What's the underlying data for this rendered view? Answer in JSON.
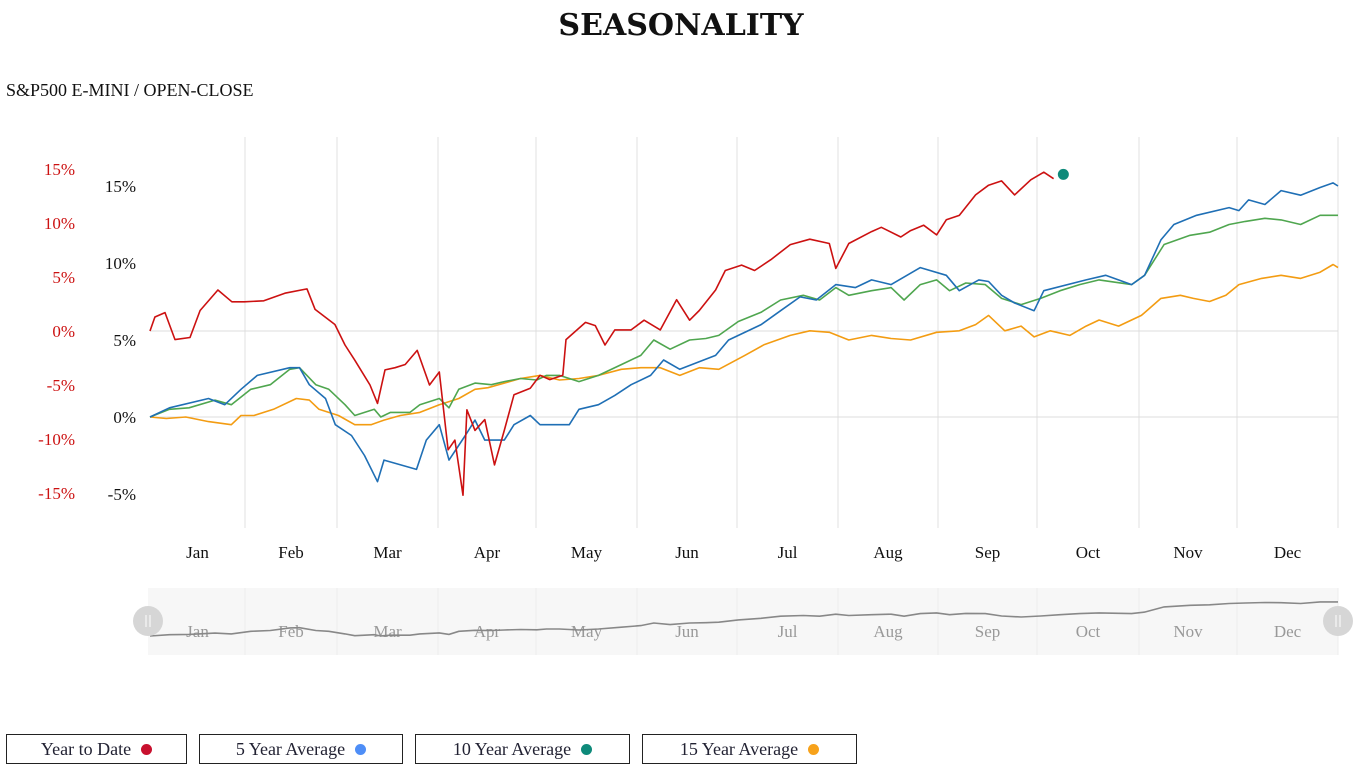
{
  "title": "SEASONALITY",
  "subtitle": "S&P500 E-MINI / OPEN-CLOSE",
  "chart_data": {
    "type": "line",
    "title": "SEASONALITY",
    "subtitle": "S&P500 E-MINI / OPEN-CLOSE",
    "x_unit": "day of year",
    "months": [
      "Jan",
      "Feb",
      "Mar",
      "Apr",
      "May",
      "Jun",
      "Jul",
      "Aug",
      "Sep",
      "Oct",
      "Nov",
      "Dec"
    ],
    "y_axes": [
      {
        "id": "ytd",
        "color": "#cc1111",
        "ticks": [
          "15%",
          "10%",
          "5%",
          "0%",
          "-5%",
          "-10%",
          "-15%"
        ],
        "tick_values": [
          15,
          10,
          5,
          0,
          -5,
          -10,
          -15
        ],
        "range": [
          -18.1,
          15.6
        ]
      },
      {
        "id": "avg",
        "color": "#111111",
        "ticks": [
          "15%",
          "10%",
          "5%",
          "0%",
          "-5%"
        ],
        "tick_values": [
          15,
          10,
          5,
          0,
          -5
        ],
        "range": [
          -7.3,
          18.1
        ]
      }
    ],
    "grid": true,
    "series": [
      {
        "name": "Year to Date",
        "axis": "ytd",
        "color": "#cc1111",
        "legend_dot": "#c8102e",
        "points": [
          [
            0,
            0
          ],
          [
            1.5,
            1.3
          ],
          [
            4.6,
            1.7
          ],
          [
            7.7,
            -0.8
          ],
          [
            12.3,
            -0.6
          ],
          [
            15.4,
            1.9
          ],
          [
            20.9,
            3.8
          ],
          [
            25.2,
            2.7
          ],
          [
            29,
            2.7
          ],
          [
            35,
            2.8
          ],
          [
            41.5,
            3.5
          ],
          [
            48.3,
            3.9
          ],
          [
            50.8,
            2.0
          ],
          [
            56.9,
            0.6
          ],
          [
            60,
            -1.3
          ],
          [
            63,
            -2.7
          ],
          [
            67.7,
            -5
          ],
          [
            70,
            -6.7
          ],
          [
            72.3,
            -3.6
          ],
          [
            75.4,
            -3.4
          ],
          [
            78.5,
            -3.1
          ],
          [
            82.2,
            -1.8
          ],
          [
            86,
            -5
          ],
          [
            89,
            -3.8
          ],
          [
            91.7,
            -11
          ],
          [
            93.8,
            -10.1
          ],
          [
            96.3,
            -15.2
          ],
          [
            97.5,
            -7.3
          ],
          [
            100,
            -9.2
          ],
          [
            103,
            -8.2
          ],
          [
            106,
            -12.4
          ],
          [
            109,
            -9.2
          ],
          [
            112,
            -5.9
          ],
          [
            117,
            -5.3
          ],
          [
            120,
            -4.1
          ],
          [
            123,
            -4.5
          ],
          [
            127,
            -4.1
          ],
          [
            128,
            -0.8
          ],
          [
            134,
            0.8
          ],
          [
            137,
            0.5
          ],
          [
            140,
            -1.3
          ],
          [
            143,
            0.1
          ],
          [
            148,
            0.1
          ],
          [
            152,
            1
          ],
          [
            157,
            0.1
          ],
          [
            162,
            2.9
          ],
          [
            166,
            1
          ],
          [
            169,
            1.9
          ],
          [
            174,
            3.8
          ],
          [
            177,
            5.6
          ],
          [
            182,
            6.1
          ],
          [
            186,
            5.6
          ],
          [
            191,
            6.6
          ],
          [
            197,
            8
          ],
          [
            203,
            8.5
          ],
          [
            209,
            8.1
          ],
          [
            211,
            5.8
          ],
          [
            215,
            8.1
          ],
          [
            222,
            9.2
          ],
          [
            225,
            9.6
          ],
          [
            231,
            8.7
          ],
          [
            234,
            9.3
          ],
          [
            238,
            9.8
          ],
          [
            242,
            8.9
          ],
          [
            245,
            10.3
          ],
          [
            249,
            10.7
          ],
          [
            254,
            12.6
          ],
          [
            258,
            13.5
          ],
          [
            262,
            13.9
          ],
          [
            266,
            12.6
          ],
          [
            271,
            14
          ],
          [
            275,
            14.7
          ],
          [
            278,
            14.1
          ]
        ],
        "current_marker": {
          "day": 281,
          "value": 14.5,
          "color": "#0e8a7a"
        }
      },
      {
        "name": "5 Year Average",
        "axis": "avg",
        "color": "#1f6fb5",
        "legend_dot": "#4e8ef7",
        "points": [
          [
            0,
            0
          ],
          [
            6,
            0.6
          ],
          [
            18,
            1.2
          ],
          [
            23,
            0.8
          ],
          [
            28,
            1.8
          ],
          [
            33,
            2.7
          ],
          [
            43,
            3.2
          ],
          [
            46,
            3.2
          ],
          [
            49,
            2.1
          ],
          [
            54,
            1.2
          ],
          [
            57,
            -0.5
          ],
          [
            62,
            -1.2
          ],
          [
            66,
            -2.5
          ],
          [
            70,
            -4.2
          ],
          [
            72,
            -2.8
          ],
          [
            82,
            -3.4
          ],
          [
            85,
            -1.5
          ],
          [
            89,
            -0.5
          ],
          [
            92,
            -2.8
          ],
          [
            97,
            -1.2
          ],
          [
            100,
            -0.2
          ],
          [
            103,
            -1.5
          ],
          [
            109,
            -1.5
          ],
          [
            112,
            -0.5
          ],
          [
            117,
            0.1
          ],
          [
            120,
            -0.5
          ],
          [
            129,
            -0.5
          ],
          [
            132,
            0.5
          ],
          [
            138,
            0.8
          ],
          [
            143,
            1.4
          ],
          [
            148,
            2.1
          ],
          [
            154,
            2.7
          ],
          [
            158,
            3.7
          ],
          [
            163,
            3.1
          ],
          [
            174,
            4.0
          ],
          [
            178,
            5.0
          ],
          [
            188,
            6.0
          ],
          [
            194,
            6.9
          ],
          [
            200,
            7.8
          ],
          [
            205,
            7.6
          ],
          [
            211,
            8.6
          ],
          [
            217,
            8.4
          ],
          [
            222,
            8.9
          ],
          [
            228,
            8.6
          ],
          [
            237,
            9.7
          ],
          [
            245,
            9.2
          ],
          [
            249,
            8.2
          ],
          [
            255,
            8.9
          ],
          [
            258,
            8.8
          ],
          [
            262,
            7.9
          ],
          [
            266,
            7.4
          ],
          [
            272,
            6.9
          ],
          [
            275,
            8.2
          ],
          [
            288,
            8.9
          ],
          [
            294,
            9.2
          ],
          [
            302,
            8.6
          ],
          [
            306,
            9.2
          ],
          [
            311,
            11.5
          ],
          [
            315,
            12.5
          ],
          [
            322,
            13.1
          ],
          [
            332,
            13.6
          ],
          [
            335,
            13.4
          ],
          [
            338,
            14.1
          ],
          [
            343,
            13.8
          ],
          [
            348,
            14.7
          ],
          [
            354,
            14.4
          ],
          [
            360,
            14.9
          ],
          [
            364,
            15.2
          ],
          [
            365.5,
            15.0
          ]
        ]
      },
      {
        "name": "10 Year Average",
        "axis": "avg",
        "color": "#4fa64f",
        "legend_dot": "#0e8a7a",
        "points": [
          [
            0,
            0
          ],
          [
            6,
            0.5
          ],
          [
            12,
            0.6
          ],
          [
            20,
            1.1
          ],
          [
            25,
            0.8
          ],
          [
            31,
            1.8
          ],
          [
            37,
            2.1
          ],
          [
            43,
            3.1
          ],
          [
            46,
            3.2
          ],
          [
            51,
            2.1
          ],
          [
            55,
            1.8
          ],
          [
            60,
            0.8
          ],
          [
            63,
            0.1
          ],
          [
            69,
            0.5
          ],
          [
            71,
            0
          ],
          [
            74,
            0.3
          ],
          [
            80,
            0.3
          ],
          [
            83,
            0.8
          ],
          [
            89,
            1.2
          ],
          [
            92,
            0.6
          ],
          [
            95,
            1.8
          ],
          [
            100,
            2.2
          ],
          [
            105,
            2.1
          ],
          [
            109,
            2.3
          ],
          [
            114,
            2.5
          ],
          [
            119,
            2.4
          ],
          [
            122,
            2.7
          ],
          [
            126,
            2.7
          ],
          [
            132,
            2.3
          ],
          [
            138,
            2.7
          ],
          [
            145,
            3.4
          ],
          [
            151,
            4.0
          ],
          [
            155,
            5.0
          ],
          [
            160,
            4.4
          ],
          [
            166,
            5.0
          ],
          [
            171,
            5.1
          ],
          [
            175,
            5.3
          ],
          [
            181,
            6.2
          ],
          [
            188,
            6.8
          ],
          [
            194,
            7.6
          ],
          [
            201,
            7.9
          ],
          [
            206,
            7.6
          ],
          [
            211,
            8.4
          ],
          [
            215,
            7.9
          ],
          [
            222,
            8.2
          ],
          [
            228,
            8.4
          ],
          [
            232,
            7.6
          ],
          [
            237,
            8.6
          ],
          [
            242,
            8.9
          ],
          [
            246,
            8.2
          ],
          [
            251,
            8.7
          ],
          [
            257,
            8.6
          ],
          [
            262,
            7.7
          ],
          [
            268,
            7.3
          ],
          [
            274,
            7.7
          ],
          [
            280,
            8.2
          ],
          [
            286,
            8.6
          ],
          [
            292,
            8.9
          ],
          [
            302,
            8.6
          ],
          [
            306,
            9.2
          ],
          [
            312,
            11.2
          ],
          [
            320,
            11.8
          ],
          [
            326,
            12.0
          ],
          [
            332,
            12.5
          ],
          [
            337,
            12.7
          ],
          [
            343,
            12.9
          ],
          [
            348,
            12.8
          ],
          [
            354,
            12.5
          ],
          [
            360,
            13.1
          ],
          [
            365.5,
            13.1
          ]
        ]
      },
      {
        "name": "15 Year Average",
        "axis": "avg",
        "color": "#f39c12",
        "legend_dot": "#f7a21b",
        "points": [
          [
            0,
            0
          ],
          [
            5,
            -0.1
          ],
          [
            11,
            0
          ],
          [
            18,
            -0.3
          ],
          [
            25,
            -0.5
          ],
          [
            28,
            0.1
          ],
          [
            32,
            0.1
          ],
          [
            38,
            0.5
          ],
          [
            45,
            1.2
          ],
          [
            49,
            1.1
          ],
          [
            52,
            0.5
          ],
          [
            58,
            0.1
          ],
          [
            63,
            -0.5
          ],
          [
            68,
            -0.5
          ],
          [
            72,
            -0.2
          ],
          [
            77,
            0.1
          ],
          [
            83,
            0.3
          ],
          [
            89,
            0.8
          ],
          [
            95,
            1.2
          ],
          [
            100,
            1.8
          ],
          [
            104,
            1.9
          ],
          [
            109,
            2.2
          ],
          [
            114,
            2.5
          ],
          [
            120,
            2.7
          ],
          [
            126,
            2.4
          ],
          [
            132,
            2.5
          ],
          [
            138,
            2.7
          ],
          [
            145,
            3.1
          ],
          [
            151,
            3.2
          ],
          [
            157,
            3.2
          ],
          [
            163,
            2.7
          ],
          [
            169,
            3.2
          ],
          [
            175,
            3.1
          ],
          [
            183,
            4.0
          ],
          [
            189,
            4.7
          ],
          [
            197,
            5.3
          ],
          [
            203,
            5.6
          ],
          [
            209,
            5.5
          ],
          [
            215,
            5.0
          ],
          [
            222,
            5.3
          ],
          [
            228,
            5.1
          ],
          [
            234,
            5.0
          ],
          [
            242,
            5.5
          ],
          [
            249,
            5.6
          ],
          [
            254,
            6.0
          ],
          [
            258,
            6.6
          ],
          [
            263,
            5.6
          ],
          [
            268,
            5.9
          ],
          [
            272,
            5.2
          ],
          [
            277,
            5.6
          ],
          [
            283,
            5.3
          ],
          [
            288,
            5.9
          ],
          [
            292,
            6.3
          ],
          [
            298,
            5.9
          ],
          [
            305,
            6.6
          ],
          [
            311,
            7.7
          ],
          [
            317,
            7.9
          ],
          [
            321,
            7.7
          ],
          [
            326,
            7.5
          ],
          [
            331,
            7.9
          ],
          [
            335,
            8.6
          ],
          [
            342,
            9.0
          ],
          [
            348,
            9.2
          ],
          [
            354,
            9.0
          ],
          [
            360,
            9.4
          ],
          [
            364,
            9.9
          ],
          [
            365.5,
            9.7
          ]
        ]
      }
    ],
    "legend_position": "bottom-left",
    "navigator": {
      "series": "10 Year Average",
      "months": [
        "Jan",
        "Feb",
        "Mar",
        "Apr",
        "May",
        "Jun",
        "Jul",
        "Aug",
        "Sep",
        "Oct",
        "Nov",
        "Dec"
      ]
    }
  }
}
